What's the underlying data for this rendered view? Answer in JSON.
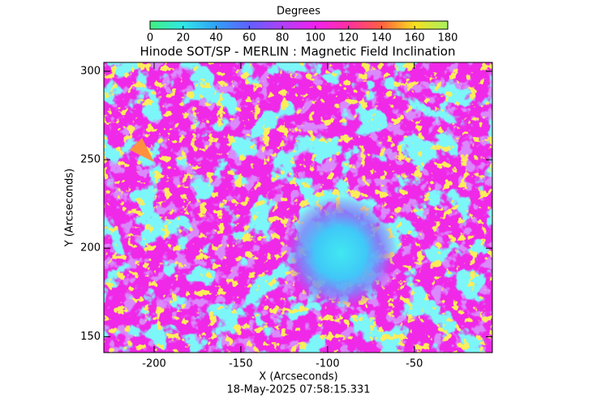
{
  "chart_data": {
    "type": "image",
    "title": "Hinode SOT/SP - MERLIN : Magnetic Field Inclination",
    "xlabel": "X (Arcseconds)",
    "ylabel": "Y (Arcseconds)",
    "footer": "18-May-2025 07:58:15.331",
    "xlim": [
      -229,
      -5
    ],
    "ylim": [
      141,
      305
    ],
    "xticks": [
      -200,
      -150,
      -100,
      -50
    ],
    "yticks": [
      150,
      200,
      250,
      300
    ],
    "colorbar": {
      "label": "Degrees",
      "lim": [
        0,
        180
      ],
      "ticks": [
        0,
        20,
        40,
        60,
        80,
        100,
        120,
        140,
        160,
        180
      ],
      "colors": [
        "#40f080",
        "#30e8e8",
        "#30a0f8",
        "#6060ff",
        "#b040f8",
        "#f020f0",
        "#ff30a0",
        "#ff6040",
        "#f8e020",
        "#a8f060"
      ]
    }
  }
}
